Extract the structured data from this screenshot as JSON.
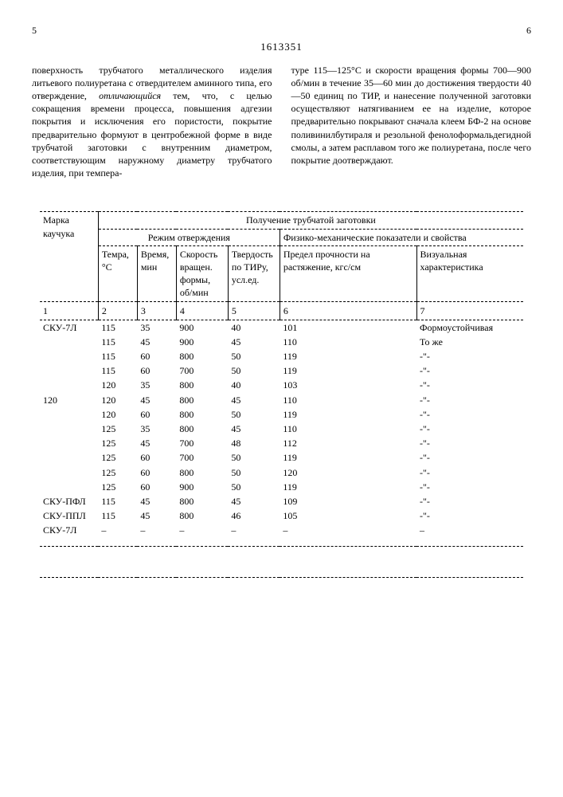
{
  "header": {
    "left_page": "5",
    "right_page": "6",
    "doc_number": "1613351"
  },
  "left_col": {
    "text_a": "поверхность трубчатого металлического изделия литьевого полиуретана с отвердителем аминного типа, его отверждение, ",
    "italic": "отличающийся",
    "text_b": " тем, что, с целью сокращения времени процесса, повышения адгезии покрытия и исключения его пористости, покрытие предварительно формуют в центробежной форме в виде трубчатой заготовки с внутренним диаметром, соответствующим наружному диаметру трубчатого изделия, при темпера-",
    "side_num": "5"
  },
  "right_col": {
    "text": "туре 115—125°С и скорости вращения формы 700—900 об/мин в течение 35—60 мин до достижения твердости 40—50 единиц по ТИР, и нанесение полученной заготовки осуществляют натягиванием ее на изделие, которое предварительно покрывают сначала клеем БФ-2 на основе поливинилбутираля и резольной фенолоформальдегидной смолы, а затем расплавом того же полиуретана, после чего покрытие доотверждают."
  },
  "table": {
    "h_marka": "Марка каучука",
    "h_main": "Получение трубчатой заготовки",
    "h_regime": "Режим отверждения",
    "h_phys": "Физико-механические показатели и свойства",
    "h_temp": "Темра, °С",
    "h_time": "Время, мин",
    "h_speed": "Скорость вращен. формы, об/мин",
    "h_hard": "Твердость по ТИРу, усл.ед.",
    "h_strength": "Предел прочности на растяжение, кгс/см",
    "h_visual": "Визуальная характеристика",
    "colnums": [
      "1",
      "2",
      "3",
      "4",
      "5",
      "6",
      "7"
    ],
    "rows": [
      {
        "m": "СКУ-7Л",
        "t": "115",
        "tm": "35",
        "sp": "900",
        "hd": "40",
        "pr": "101",
        "vi": "Формоустойчивая"
      },
      {
        "m": "",
        "t": "115",
        "tm": "45",
        "sp": "900",
        "hd": "45",
        "pr": "110",
        "vi": "То же"
      },
      {
        "m": "",
        "t": "115",
        "tm": "60",
        "sp": "800",
        "hd": "50",
        "pr": "119",
        "vi": "-\"-"
      },
      {
        "m": "",
        "t": "115",
        "tm": "60",
        "sp": "700",
        "hd": "50",
        "pr": "119",
        "vi": "-\"-"
      },
      {
        "m": "",
        "t": "120",
        "tm": "35",
        "sp": "800",
        "hd": "40",
        "pr": "103",
        "vi": "-\"-"
      },
      {
        "m": "120",
        "t": "120",
        "tm": "45",
        "sp": "800",
        "hd": "45",
        "pr": "110",
        "vi": "-\"-"
      },
      {
        "m": "",
        "t": "120",
        "tm": "60",
        "sp": "800",
        "hd": "50",
        "pr": "119",
        "vi": "-\"-"
      },
      {
        "m": "",
        "t": "125",
        "tm": "35",
        "sp": "800",
        "hd": "45",
        "pr": "110",
        "vi": "-\"-"
      },
      {
        "m": "",
        "t": "125",
        "tm": "45",
        "sp": "700",
        "hd": "48",
        "pr": "112",
        "vi": "-\"-"
      },
      {
        "m": "",
        "t": "125",
        "tm": "60",
        "sp": "700",
        "hd": "50",
        "pr": "119",
        "vi": "-\"-"
      },
      {
        "m": "",
        "t": "125",
        "tm": "60",
        "sp": "800",
        "hd": "50",
        "pr": "120",
        "vi": "-\"-"
      },
      {
        "m": "",
        "t": "125",
        "tm": "60",
        "sp": "900",
        "hd": "50",
        "pr": "119",
        "vi": "-\"-"
      },
      {
        "m": "СКУ-ПФЛ",
        "t": "115",
        "tm": "45",
        "sp": "800",
        "hd": "45",
        "pr": "109",
        "vi": "-\"-"
      },
      {
        "m": "СКУ-ППЛ",
        "t": "115",
        "tm": "45",
        "sp": "800",
        "hd": "46",
        "pr": "105",
        "vi": "-\"-"
      },
      {
        "m": "СКУ-7Л",
        "t": "–",
        "tm": "–",
        "sp": "–",
        "hd": "–",
        "pr": "–",
        "vi": "–"
      }
    ]
  }
}
